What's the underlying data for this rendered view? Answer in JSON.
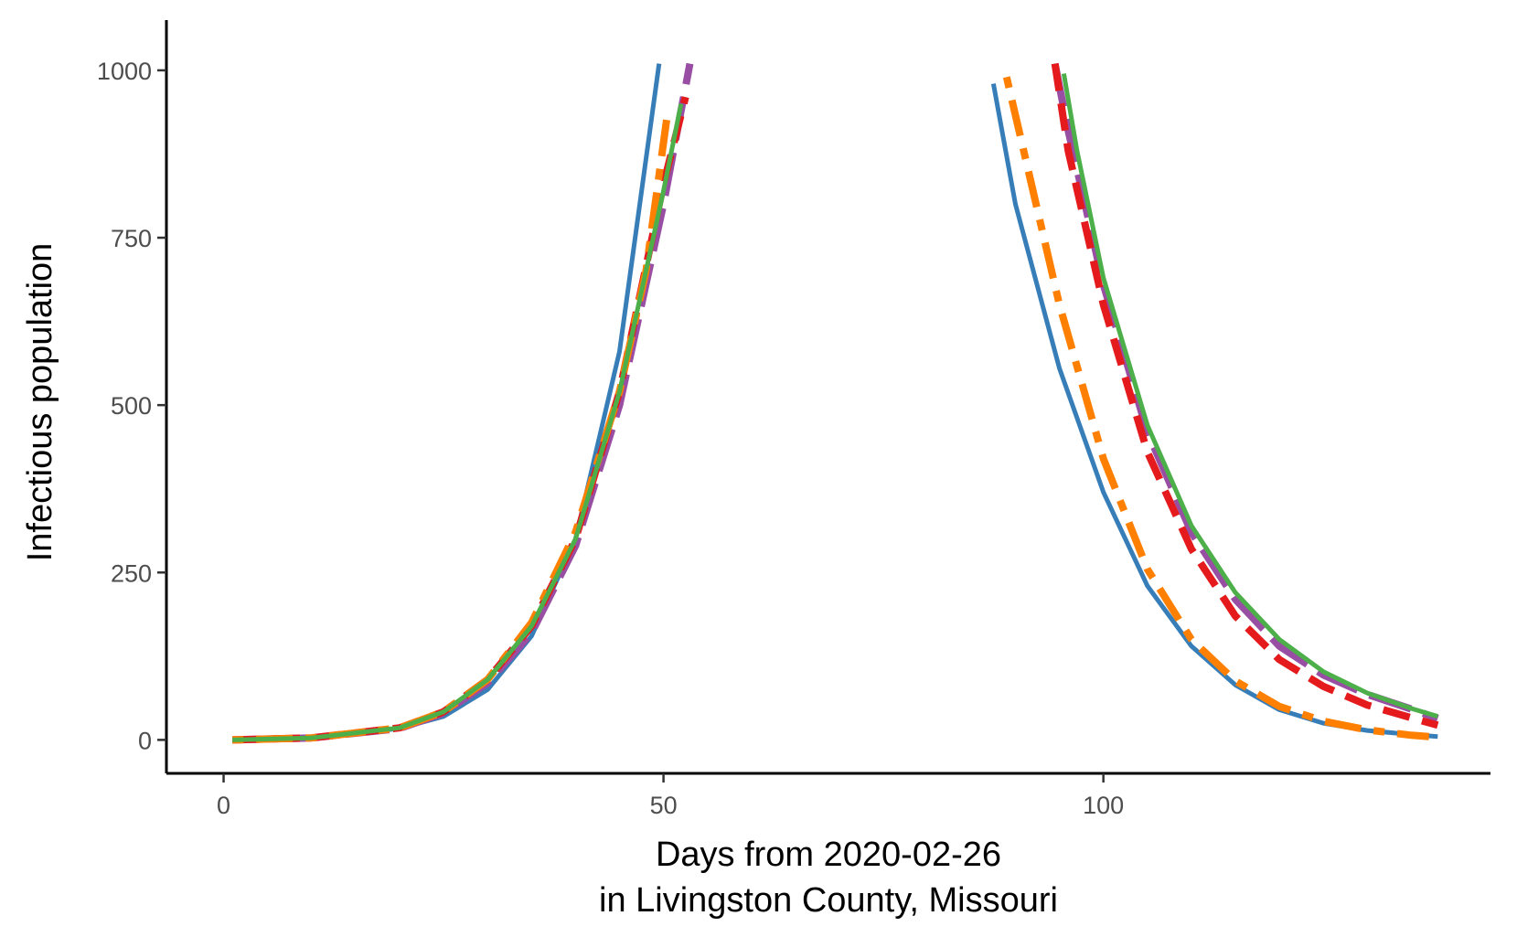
{
  "chart_data": {
    "type": "line",
    "title": "",
    "xlabel_lines": [
      "Days from 2020-02-26",
      "in Livingston County, Missouri"
    ],
    "ylabel": "Infectious population",
    "xlim": [
      -6.5,
      144
    ],
    "ylim": [
      -50,
      1075
    ],
    "x_ticks": [
      0,
      50,
      100
    ],
    "y_ticks": [
      0,
      250,
      500,
      750,
      1000
    ],
    "grid": false,
    "legend": "none",
    "series": [
      {
        "color": "#377EB8",
        "dash": "solid",
        "segments": [
          {
            "x": [
              1,
              10,
              20,
              25,
              30,
              35,
              40,
              45,
              49.5
            ],
            "y": [
              0,
              3,
              17,
              35,
              75,
              155,
              300,
              580,
              1010
            ]
          },
          {
            "x": [
              87.5,
              90,
              95,
              100,
              105,
              110,
              115,
              120,
              125,
              130,
              135,
              138
            ],
            "y": [
              980,
              800,
              555,
              370,
              230,
              140,
              82,
              45,
              25,
              14,
              8,
              5
            ]
          }
        ]
      },
      {
        "color": "#984EA3",
        "dash": "longdash",
        "segments": [
          {
            "x": [
              1,
              10,
              20,
              25,
              30,
              35,
              40,
              45,
              50,
              53
            ],
            "y": [
              0,
              3,
              17,
              40,
              85,
              160,
              290,
              500,
              800,
              1010
            ]
          },
          {
            "x": [
              94.5,
              96,
              100,
              105,
              110,
              115,
              120,
              125,
              130,
              135,
              138
            ],
            "y": [
              1010,
              910,
              680,
              460,
              310,
              210,
              140,
              97,
              68,
              46,
              32
            ]
          }
        ]
      },
      {
        "color": "#E41A1C",
        "dash": "dashed",
        "segments": [
          {
            "x": [
              1,
              10,
              20,
              25,
              30,
              35,
              40,
              45,
              50,
              52.5
            ],
            "y": [
              0,
              3,
              18,
              42,
              90,
              170,
              300,
              520,
              830,
              960
            ]
          },
          {
            "x": [
              94.5,
              96,
              100,
              105,
              110,
              115,
              120,
              125,
              130,
              135,
              138
            ],
            "y": [
              1010,
              880,
              650,
              430,
              285,
              185,
              120,
              80,
              52,
              33,
              22
            ]
          }
        ]
      },
      {
        "color": "#FF7F00",
        "dash": "dotdash",
        "segments": [
          {
            "x": [
              1,
              10,
              20,
              25,
              30,
              35,
              40,
              45,
              48,
              50.5
            ],
            "y": [
              0,
              3,
              18,
              42,
              90,
              175,
              310,
              520,
              700,
              940
            ]
          },
          {
            "x": [
              89,
              92,
              95,
              100,
              105,
              110,
              115,
              120,
              125,
              130,
              135,
              137
            ],
            "y": [
              990,
              820,
              650,
              420,
              255,
              150,
              88,
              50,
              28,
              15,
              7,
              5
            ]
          }
        ]
      },
      {
        "color": "#4DAF4A",
        "dash": "solid",
        "segments": [
          {
            "x": [
              1,
              10,
              20,
              25,
              30,
              35,
              40,
              45,
              50,
              52
            ],
            "y": [
              0,
              3,
              18,
              42,
              90,
              170,
              300,
              520,
              820,
              950
            ]
          },
          {
            "x": [
              95.5,
              97,
              100,
              105,
              110,
              115,
              120,
              125,
              130,
              135,
              138
            ],
            "y": [
              995,
              880,
              690,
              470,
              320,
              220,
              150,
              102,
              70,
              47,
              35
            ]
          }
        ]
      }
    ]
  }
}
